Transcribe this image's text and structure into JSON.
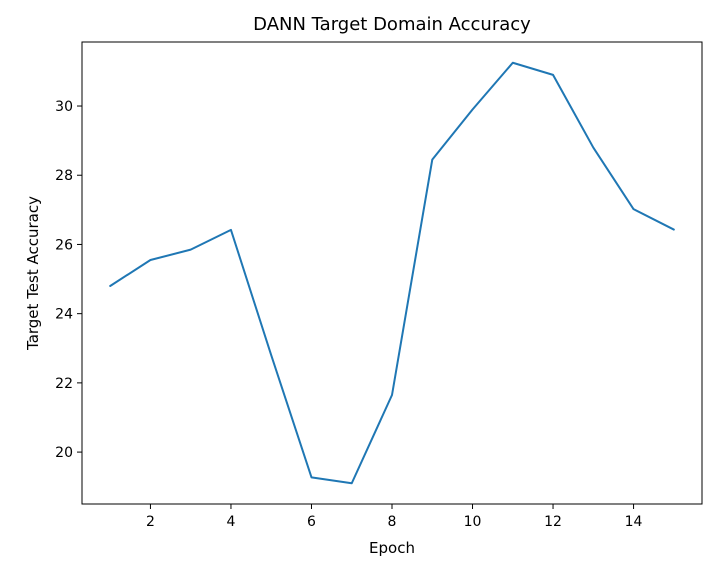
{
  "chart_data": {
    "type": "line",
    "title": "DANN Target Domain Accuracy",
    "xlabel": "Epoch",
    "ylabel": "Target Test Accuracy",
    "xlim": [
      0.3,
      15.7
    ],
    "ylim": [
      18.5,
      31.85
    ],
    "xticks": [
      2,
      4,
      6,
      8,
      10,
      12,
      14
    ],
    "yticks": [
      20,
      22,
      24,
      26,
      28,
      30
    ],
    "grid": false,
    "series": [
      {
        "color": "#1f77b4",
        "x": [
          1,
          2,
          3,
          4,
          5,
          6,
          7,
          8,
          9,
          10,
          11,
          12,
          13,
          14,
          15
        ],
        "y": [
          24.8,
          25.55,
          25.85,
          26.42,
          22.8,
          19.27,
          19.1,
          21.65,
          28.45,
          29.9,
          31.25,
          30.9,
          28.8,
          27.02,
          26.43
        ]
      }
    ]
  }
}
